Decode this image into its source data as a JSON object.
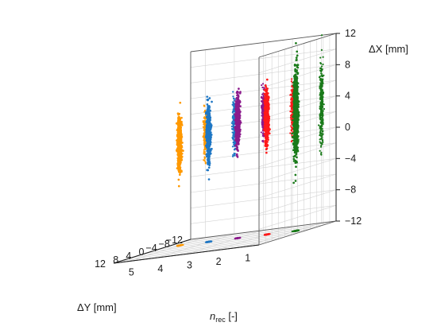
{
  "chart_data": {
    "type": "scatter",
    "projection": "3d",
    "grid": true,
    "axes": {
      "x": {
        "label_prefix": "n",
        "label_sub": "rec",
        "label_suffix": " [-]",
        "range": [
          0.5,
          5.5
        ],
        "ticks": [
          "1",
          "2",
          "3",
          "4",
          "5"
        ]
      },
      "y": {
        "label": "ΔY [mm]",
        "range": [
          -12,
          12
        ],
        "ticks": [
          "−12",
          "−8",
          "−4",
          "0",
          "4",
          "8",
          "12"
        ]
      },
      "z": {
        "label": "ΔX [mm]",
        "range": [
          -12,
          12
        ],
        "ticks": [
          "−12",
          "−8",
          "−4",
          "0",
          "4",
          "8",
          "12"
        ]
      }
    },
    "series": [
      {
        "n_rec": 5,
        "color": "#ff9900",
        "dx_mean": 1.0,
        "dx_sd": 1.6,
        "dy_mean": -4.0,
        "dy_sd": 0.15
      },
      {
        "n_rec": 4,
        "color": "#1f77c4",
        "dx_mean": 2.0,
        "dx_sd": 1.6,
        "dy_mean": -4.0,
        "dy_sd": 0.15
      },
      {
        "n_rec": 3,
        "color": "#8c1a8c",
        "dx_mean": 3.0,
        "dx_sd": 1.5,
        "dy_mean": -4.0,
        "dy_sd": 0.15
      },
      {
        "n_rec": 2,
        "color": "#ff1a1a",
        "dx_mean": 3.0,
        "dx_sd": 1.5,
        "dy_mean": -4.0,
        "dy_sd": 0.15
      },
      {
        "n_rec": 1,
        "color": "#1a7a1a",
        "dx_mean": 3.0,
        "dx_sd": 2.6,
        "dy_mean": -4.0,
        "dy_sd": 0.2
      }
    ]
  }
}
